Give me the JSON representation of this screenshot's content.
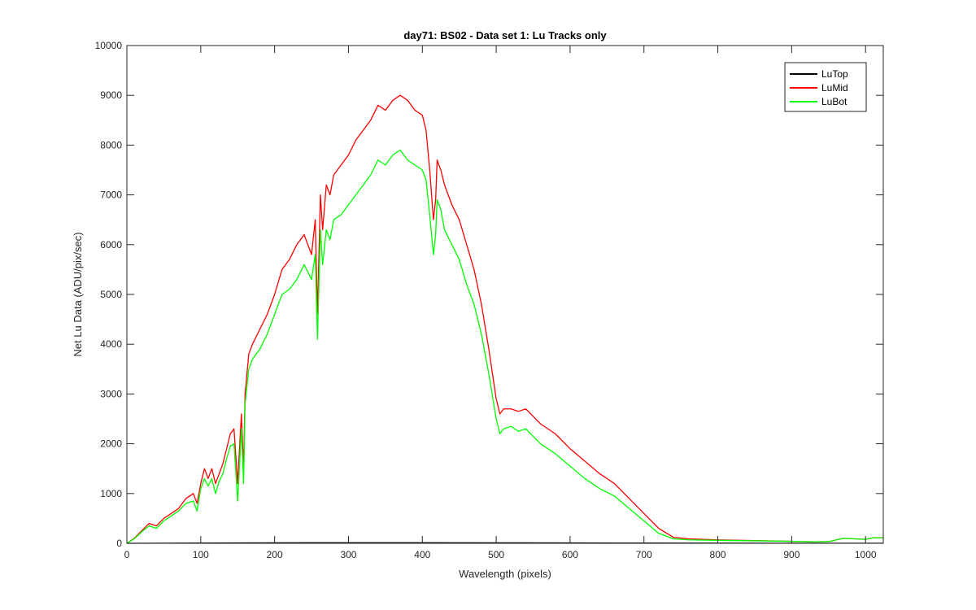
{
  "chart_data": {
    "type": "line",
    "title": "day71: BS02 - Data set 1: Lu Tracks only",
    "xlabel": "Wavelength (pixels)",
    "ylabel": "Net Lu Data (ADU/pix/sec)",
    "xlim": [
      0,
      1024
    ],
    "ylim": [
      0,
      10000
    ],
    "xticks": [
      0,
      100,
      200,
      300,
      400,
      500,
      600,
      700,
      800,
      900,
      1000
    ],
    "yticks": [
      0,
      1000,
      2000,
      3000,
      4000,
      5000,
      6000,
      7000,
      8000,
      9000,
      10000
    ],
    "grid": false,
    "legend_position": "top-right",
    "series": [
      {
        "name": "LuTop",
        "color": "#000000",
        "x": [
          0,
          100,
          200,
          300,
          400,
          500,
          600,
          700,
          800,
          900,
          1024
        ],
        "y": [
          0,
          5,
          10,
          12,
          12,
          10,
          8,
          5,
          3,
          2,
          2
        ]
      },
      {
        "name": "LuMid",
        "color": "#ff0000",
        "x": [
          0,
          10,
          20,
          30,
          40,
          50,
          60,
          70,
          80,
          90,
          95,
          100,
          105,
          110,
          115,
          120,
          125,
          130,
          135,
          140,
          145,
          150,
          155,
          158,
          160,
          165,
          170,
          180,
          190,
          200,
          210,
          220,
          230,
          240,
          250,
          255,
          258,
          262,
          265,
          270,
          275,
          280,
          290,
          300,
          310,
          320,
          330,
          340,
          350,
          360,
          370,
          380,
          390,
          400,
          405,
          410,
          415,
          418,
          420,
          425,
          430,
          440,
          450,
          460,
          470,
          480,
          490,
          500,
          505,
          510,
          520,
          530,
          540,
          550,
          560,
          570,
          580,
          600,
          620,
          640,
          660,
          680,
          700,
          720,
          740,
          760,
          800,
          850,
          900,
          930,
          950,
          970,
          1000,
          1010,
          1024
        ],
        "y": [
          0,
          100,
          250,
          400,
          350,
          500,
          600,
          700,
          900,
          1000,
          800,
          1200,
          1500,
          1300,
          1500,
          1200,
          1400,
          1600,
          1900,
          2200,
          2300,
          1200,
          2600,
          1500,
          3000,
          3800,
          4000,
          4300,
          4600,
          5000,
          5500,
          5700,
          6000,
          6200,
          5800,
          6500,
          4600,
          7000,
          6300,
          7200,
          7000,
          7400,
          7600,
          7800,
          8100,
          8300,
          8500,
          8800,
          8700,
          8900,
          9000,
          8900,
          8700,
          8600,
          8300,
          7500,
          6500,
          6900,
          7700,
          7500,
          7200,
          6800,
          6500,
          6000,
          5500,
          4800,
          3900,
          2900,
          2600,
          2700,
          2700,
          2650,
          2700,
          2550,
          2400,
          2300,
          2200,
          1900,
          1650,
          1400,
          1200,
          900,
          600,
          300,
          120,
          90,
          70,
          55,
          40,
          30,
          35,
          100,
          80,
          110,
          110
        ]
      },
      {
        "name": "LuBot",
        "color": "#00ff00",
        "x": [
          0,
          10,
          20,
          30,
          40,
          50,
          60,
          70,
          80,
          90,
          95,
          100,
          105,
          110,
          115,
          120,
          125,
          130,
          135,
          140,
          145,
          150,
          155,
          158,
          160,
          165,
          170,
          180,
          190,
          200,
          210,
          220,
          230,
          240,
          250,
          255,
          258,
          262,
          265,
          270,
          275,
          280,
          290,
          300,
          310,
          320,
          330,
          340,
          350,
          360,
          370,
          380,
          390,
          400,
          405,
          410,
          415,
          418,
          420,
          425,
          430,
          440,
          450,
          460,
          470,
          480,
          490,
          500,
          505,
          510,
          520,
          530,
          540,
          550,
          560,
          570,
          580,
          600,
          620,
          640,
          660,
          680,
          700,
          720,
          740,
          760,
          800,
          850,
          900,
          930,
          950,
          970,
          1000,
          1010,
          1024
        ],
        "y": [
          0,
          90,
          230,
          350,
          300,
          450,
          550,
          650,
          800,
          850,
          650,
          1100,
          1300,
          1150,
          1300,
          1000,
          1250,
          1400,
          1700,
          1950,
          2000,
          850,
          2300,
          1200,
          2800,
          3500,
          3700,
          3900,
          4200,
          4600,
          5000,
          5100,
          5300,
          5600,
          5300,
          5800,
          4100,
          6300,
          5600,
          6300,
          6100,
          6500,
          6600,
          6800,
          7000,
          7200,
          7400,
          7700,
          7600,
          7800,
          7900,
          7700,
          7600,
          7500,
          7300,
          6600,
          5800,
          6200,
          6900,
          6700,
          6300,
          6000,
          5700,
          5200,
          4800,
          4200,
          3400,
          2500,
          2200,
          2300,
          2350,
          2250,
          2300,
          2150,
          2000,
          1900,
          1800,
          1550,
          1300,
          1100,
          950,
          700,
          450,
          200,
          90,
          70,
          60,
          50,
          40,
          30,
          35,
          100,
          80,
          110,
          110
        ]
      }
    ]
  }
}
